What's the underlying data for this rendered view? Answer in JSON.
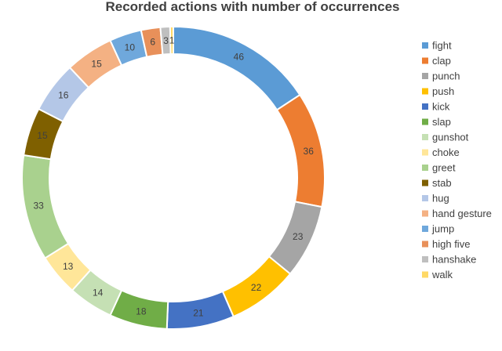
{
  "chart_data": {
    "type": "pie",
    "subtype": "doughnut",
    "title": "Recorded actions with number of occurrences",
    "legend_position": "right",
    "slices": [
      {
        "label": "fight",
        "value": 46,
        "color": "#5B9BD5"
      },
      {
        "label": "clap",
        "value": 36,
        "color": "#ED7D31"
      },
      {
        "label": "punch",
        "value": 23,
        "color": "#A5A5A5"
      },
      {
        "label": "push",
        "value": 22,
        "color": "#FFC000"
      },
      {
        "label": "kick",
        "value": 21,
        "color": "#4472C4"
      },
      {
        "label": "slap",
        "value": 18,
        "color": "#70AD47"
      },
      {
        "label": "gunshot",
        "value": 14,
        "color": "#C5E0B4"
      },
      {
        "label": "choke",
        "value": 13,
        "color": "#FFE699"
      },
      {
        "label": "greet",
        "value": 33,
        "color": "#A9D18E"
      },
      {
        "label": "stab",
        "value": 15,
        "color": "#7F6000"
      },
      {
        "label": "hug",
        "value": 16,
        "color": "#B4C7E7"
      },
      {
        "label": "hand gesture",
        "value": 15,
        "color": "#F4B183"
      },
      {
        "label": "jump",
        "value": 10,
        "color": "#6FA8DC"
      },
      {
        "label": "high five",
        "value": 6,
        "color": "#E8905A"
      },
      {
        "label": "hanshake",
        "value": 3,
        "color": "#BFBFBF"
      },
      {
        "label": "walk",
        "value": 1,
        "color": "#FFD966"
      }
    ]
  }
}
